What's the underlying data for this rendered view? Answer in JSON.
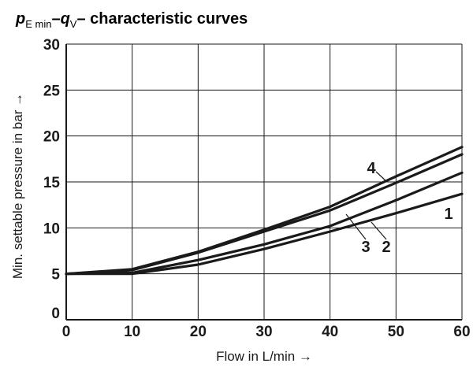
{
  "chart_data": {
    "type": "line",
    "title": {
      "p": "p",
      "p_sub": "E min",
      "dash1": "–",
      "q": "q",
      "q_sub": "V",
      "rest": "– characteristic curves"
    },
    "xlabel": "Flow in L/min →",
    "ylabel": "Min. settable pressure in bar →",
    "xlim": [
      0,
      60
    ],
    "ylim": [
      0,
      30
    ],
    "x_ticks": [
      "0",
      "10",
      "20",
      "30",
      "40",
      "50",
      "60"
    ],
    "y_ticks": [
      "0",
      "5",
      "10",
      "15",
      "20",
      "25",
      "30"
    ],
    "grid": true,
    "x": [
      0,
      10,
      20,
      30,
      40,
      50,
      60
    ],
    "series": [
      {
        "name": "1",
        "values": [
          5.0,
          5.0,
          6.0,
          7.7,
          9.6,
          11.6,
          13.7
        ]
      },
      {
        "name": "2",
        "values": [
          5.0,
          5.1,
          6.5,
          8.2,
          10.2,
          13.0,
          16.0
        ]
      },
      {
        "name": "3",
        "values": [
          5.0,
          5.4,
          7.3,
          9.6,
          11.9,
          14.9,
          18.0
        ]
      },
      {
        "name": "4",
        "values": [
          5.0,
          5.5,
          7.4,
          9.8,
          12.3,
          15.6,
          18.8
        ]
      }
    ]
  }
}
